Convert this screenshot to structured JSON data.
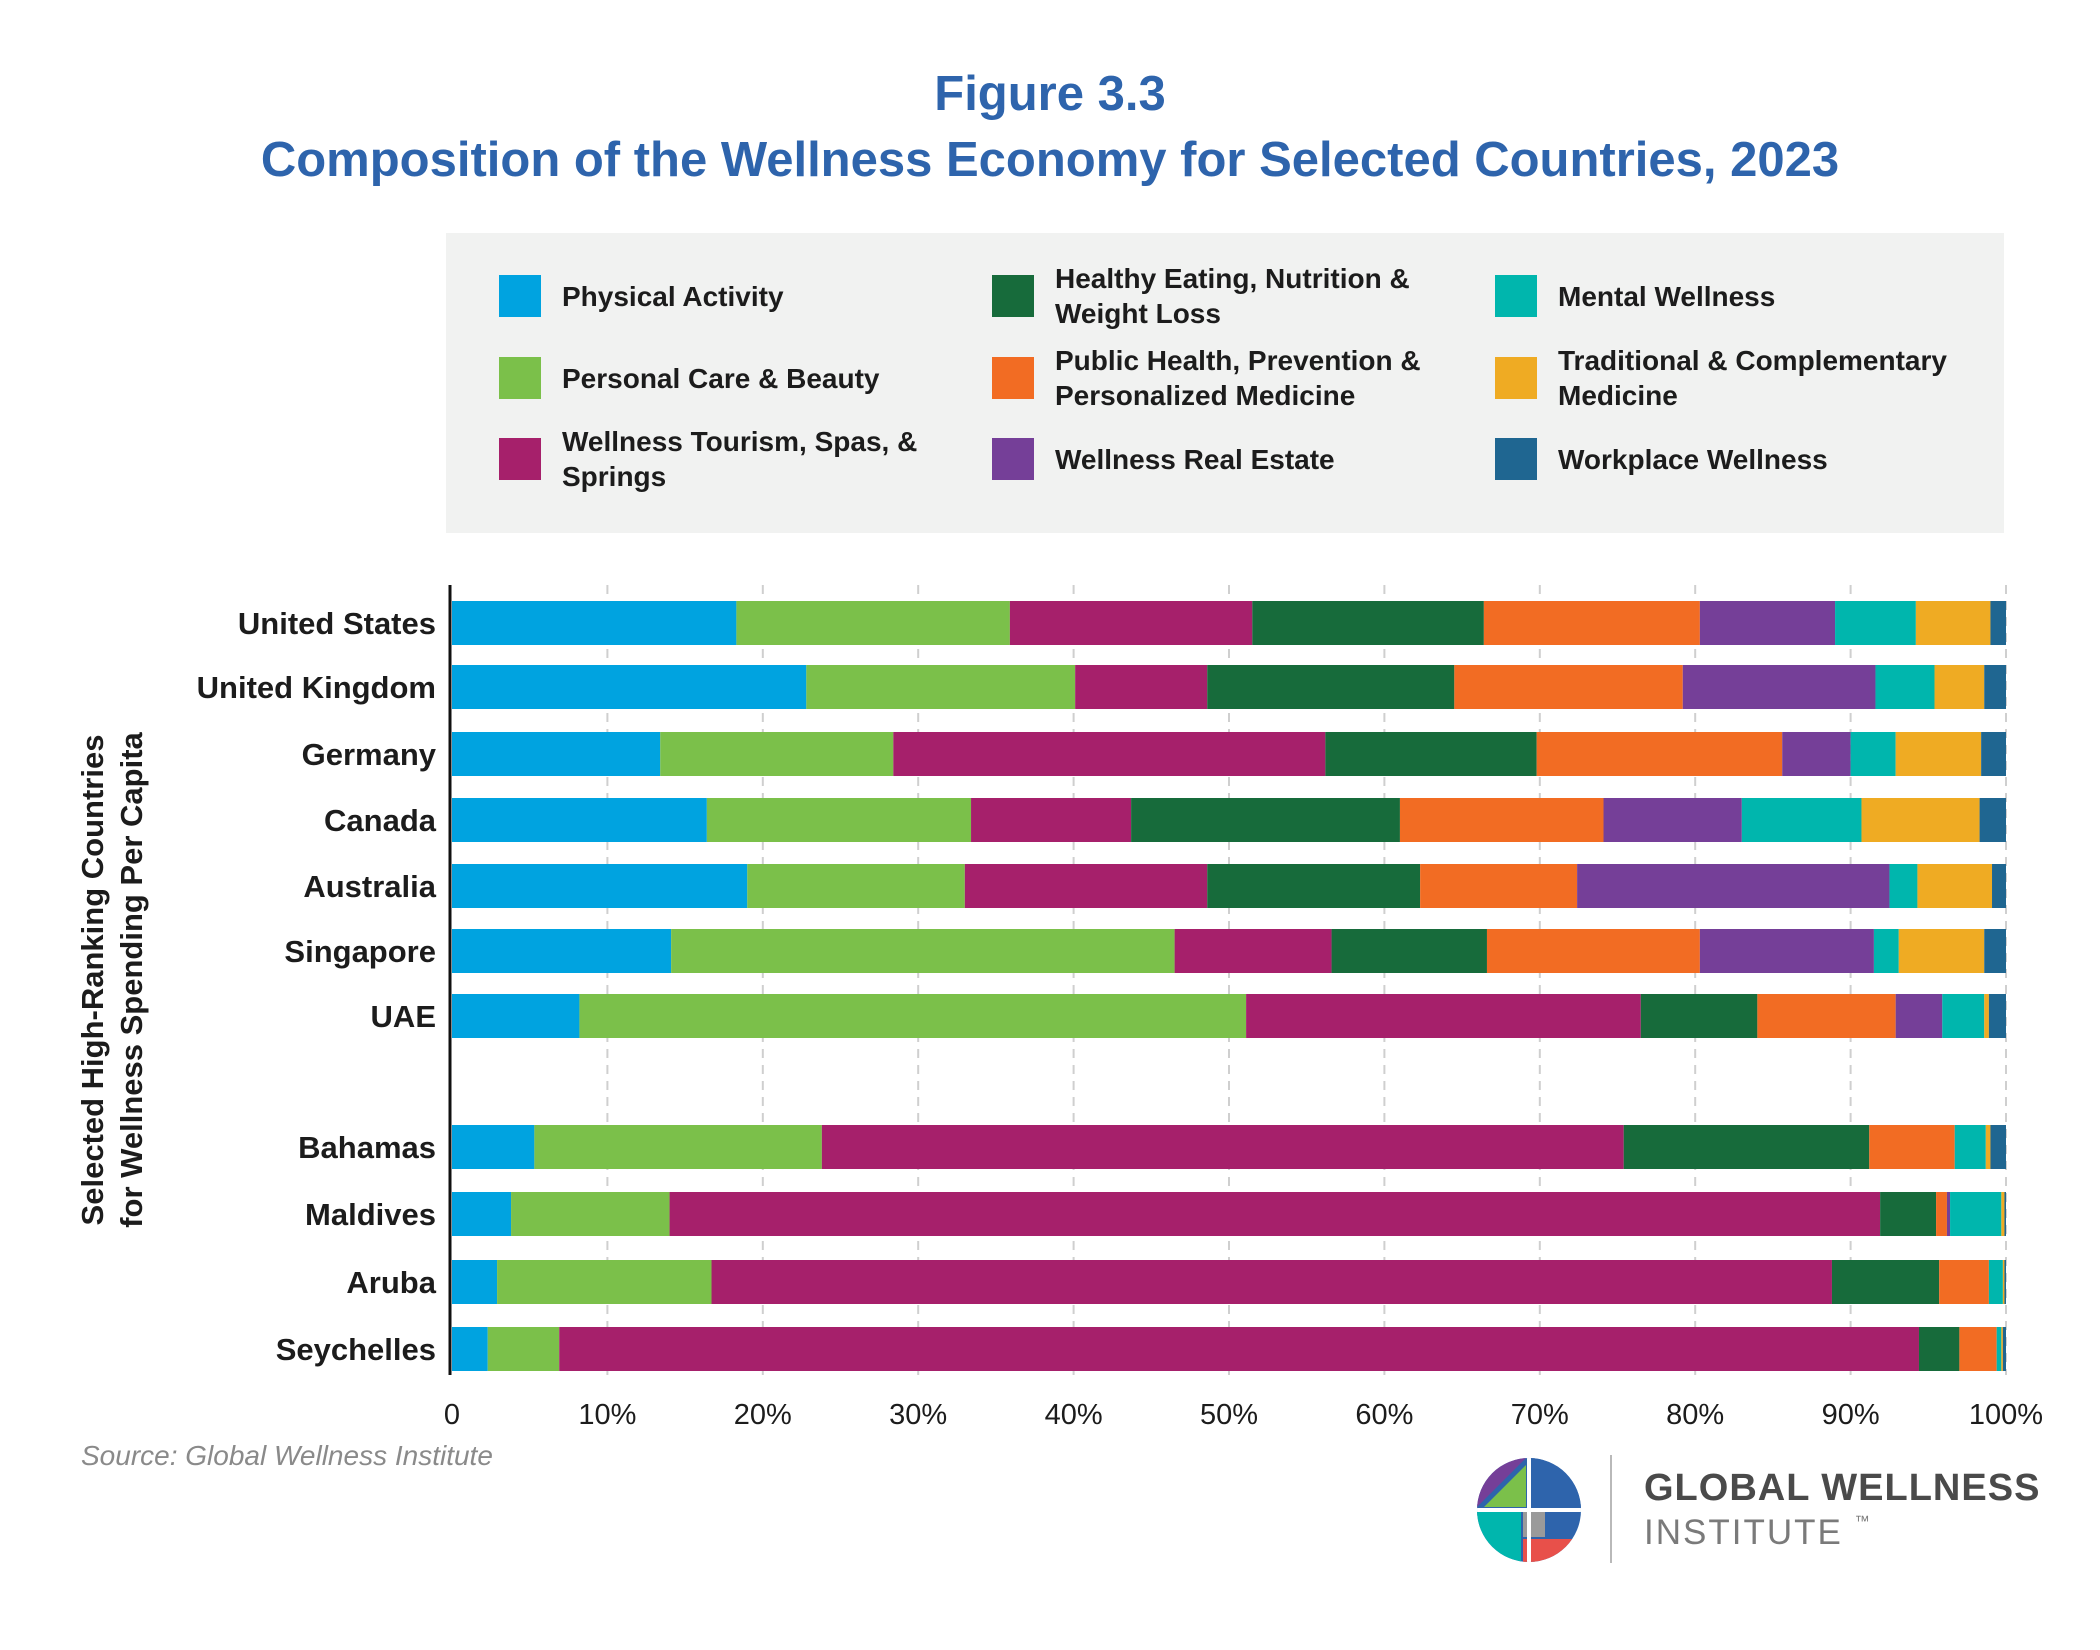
{
  "chart_data": {
    "type": "bar",
    "orientation": "horizontal",
    "stacked": true,
    "title_line1": "Figure 3.3",
    "title": "Composition of the Wellness Economy for Selected Countries, 2023",
    "ylabel_line1": "Selected High-Ranking Countries",
    "ylabel_line2": "for Wellness Spending Per Capita",
    "xlim": [
      0,
      100
    ],
    "xticks": [
      "0",
      "10%",
      "20%",
      "30%",
      "40%",
      "50%",
      "60%",
      "70%",
      "80%",
      "90%",
      "100%"
    ],
    "grid": "vertical dashed",
    "legend_position": "top",
    "categories": [
      "United States",
      "United Kingdom",
      "Germany",
      "Canada",
      "Australia",
      "Singapore",
      "UAE",
      "Bahamas",
      "Maldives",
      "Aruba",
      "Seychelles"
    ],
    "series": [
      {
        "name": "Physical Activity",
        "color": "#00a3e0",
        "values": [
          18.3,
          22.8,
          13.4,
          16.4,
          19.0,
          14.1,
          8.2,
          5.3,
          3.8,
          2.9,
          2.3
        ]
      },
      {
        "name": "Personal Care & Beauty",
        "color": "#7bc04a",
        "values": [
          17.6,
          17.3,
          15.0,
          17.0,
          14.0,
          32.4,
          42.9,
          18.5,
          10.2,
          13.8,
          4.6
        ]
      },
      {
        "name": "Wellness Tourism, Spas, & Springs",
        "color": "#a6206b",
        "values": [
          15.6,
          8.5,
          27.8,
          10.3,
          15.6,
          10.1,
          25.4,
          51.6,
          77.9,
          72.1,
          87.5
        ]
      },
      {
        "name": "Healthy Eating, Nutrition & Weight Loss",
        "color": "#176b3b",
        "values": [
          14.9,
          15.9,
          13.6,
          17.3,
          13.7,
          10.0,
          7.5,
          15.8,
          3.6,
          6.9,
          2.6
        ]
      },
      {
        "name": "Public Health, Prevention & Personalized Medicine",
        "color": "#f26c23",
        "values": [
          13.9,
          14.7,
          15.8,
          13.1,
          10.1,
          13.7,
          8.9,
          5.5,
          0.7,
          3.2,
          2.4
        ]
      },
      {
        "name": "Wellness Real Estate",
        "color": "#753f98",
        "values": [
          8.7,
          12.4,
          4.4,
          8.9,
          20.1,
          11.2,
          3.0,
          0.0,
          0.2,
          0.0,
          0.0
        ]
      },
      {
        "name": "Mental Wellness",
        "color": "#00b6ad",
        "values": [
          5.2,
          3.8,
          2.9,
          7.7,
          1.8,
          1.6,
          2.7,
          2.0,
          3.3,
          0.9,
          0.3
        ]
      },
      {
        "name": "Traditional & Complementary Medicine",
        "color": "#efab23",
        "values": [
          4.8,
          3.2,
          5.5,
          7.6,
          4.8,
          5.5,
          0.3,
          0.3,
          0.2,
          0.1,
          0.1
        ]
      },
      {
        "name": "Workplace Wellness",
        "color": "#1f6691",
        "values": [
          1.0,
          1.4,
          1.6,
          1.7,
          0.9,
          1.4,
          1.1,
          1.0,
          0.1,
          0.1,
          0.2
        ]
      }
    ],
    "source": "Source: Global Wellness Institute"
  },
  "logo": {
    "line1": "GLOBAL WELLNESS",
    "line2": "INSTITUTE",
    "tm": "™"
  }
}
